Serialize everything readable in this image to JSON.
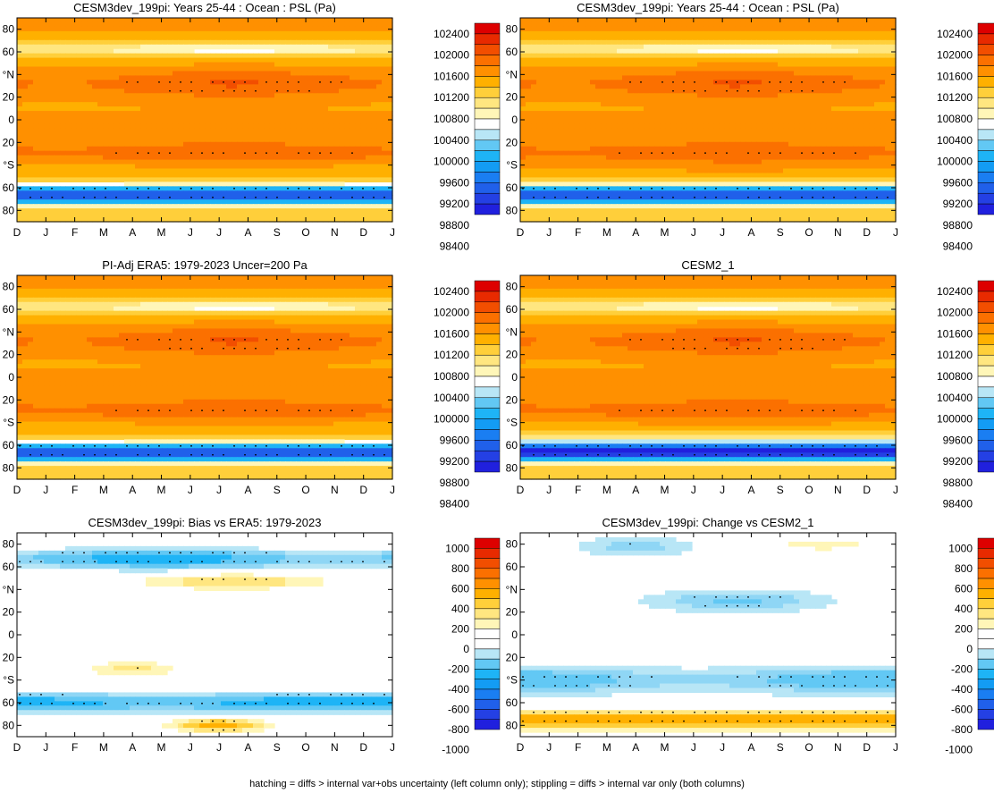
{
  "figure": {
    "footnote": "hatching = diffs > internal var+obs uncertainty (left column only); stippling = diffs > internal var only (both columns)"
  },
  "chart_data": [
    {
      "type": "heatmap",
      "id": "p1",
      "title": "CESM3dev_199pi: Years 25-44 : Ocean : PSL (Pa)",
      "field": "abs",
      "xlabel": "",
      "ylabel": "",
      "xticklabels": [
        "D",
        "J",
        "F",
        "M",
        "A",
        "M",
        "J",
        "J",
        "A",
        "S",
        "O",
        "N",
        "D",
        "J"
      ],
      "yticklabels": [
        "80",
        "60",
        "°N",
        "20",
        "0",
        "20",
        "°S",
        "60",
        "80"
      ],
      "ylim": [
        -90,
        90
      ],
      "colorbar_labels": [
        "102400",
        "102000",
        "101600",
        "101200",
        "100800",
        "100400",
        "100000",
        "99600",
        "99200",
        "98800",
        "98400"
      ],
      "colorbar_colors": [
        "#dd0000",
        "#e82a00",
        "#f24e00",
        "#fb7000",
        "#ff9000",
        "#ffb000",
        "#ffcf3a",
        "#ffe680",
        "#fff6b8",
        "#ffffff",
        "#b8e6f6",
        "#62c8f4",
        "#1eb4f6",
        "#139cf4",
        "#1a7ef2",
        "#2060ea",
        "#2440e4",
        "#2020de"
      ]
    },
    {
      "type": "heatmap",
      "id": "p2",
      "title": "CESM3dev_199pi: Years 25-44 : Ocean : PSL (Pa)",
      "field": "abs",
      "xticklabels": [
        "D",
        "J",
        "F",
        "M",
        "A",
        "M",
        "J",
        "J",
        "A",
        "S",
        "O",
        "N",
        "D",
        "J"
      ],
      "yticklabels": [
        "80",
        "60",
        "°N",
        "20",
        "0",
        "20",
        "°S",
        "60",
        "80"
      ],
      "ylim": [
        -90,
        90
      ],
      "colorbar_labels": [
        "102400",
        "102000",
        "101600",
        "101200",
        "100800",
        "100400",
        "100000",
        "99600",
        "99200",
        "98800",
        "98400"
      ]
    },
    {
      "type": "heatmap",
      "id": "p3",
      "title": "PI-Adj ERA5: 1979-2023 Uncer=200 Pa",
      "field": "abs",
      "xticklabels": [
        "D",
        "J",
        "F",
        "M",
        "A",
        "M",
        "J",
        "J",
        "A",
        "S",
        "O",
        "N",
        "D",
        "J"
      ],
      "yticklabels": [
        "80",
        "60",
        "°N",
        "20",
        "0",
        "20",
        "°S",
        "60",
        "80"
      ],
      "ylim": [
        -90,
        90
      ],
      "colorbar_labels": [
        "102400",
        "102000",
        "101600",
        "101200",
        "100800",
        "100400",
        "100000",
        "99600",
        "99200",
        "98800",
        "98400"
      ]
    },
    {
      "type": "heatmap",
      "id": "p4",
      "title": "CESM2_1",
      "field": "abs",
      "xticklabels": [
        "D",
        "J",
        "F",
        "M",
        "A",
        "M",
        "J",
        "J",
        "A",
        "S",
        "O",
        "N",
        "D",
        "J"
      ],
      "yticklabels": [
        "80",
        "60",
        "°N",
        "20",
        "0",
        "20",
        "°S",
        "60",
        "80"
      ],
      "ylim": [
        -90,
        90
      ],
      "colorbar_labels": [
        "102400",
        "102000",
        "101600",
        "101200",
        "100800",
        "100400",
        "100000",
        "99600",
        "99200",
        "98800",
        "98400"
      ]
    },
    {
      "type": "heatmap",
      "id": "p5",
      "title": "CESM3dev_199pi: Bias vs ERA5: 1979-2023",
      "field": "bias",
      "xticklabels": [
        "D",
        "J",
        "F",
        "M",
        "A",
        "M",
        "J",
        "J",
        "A",
        "S",
        "O",
        "N",
        "D",
        "J"
      ],
      "yticklabels": [
        "80",
        "60",
        "°N",
        "20",
        "0",
        "20",
        "°S",
        "60",
        "80"
      ],
      "ylim": [
        -90,
        90
      ],
      "colorbar_labels": [
        "1000",
        "800",
        "600",
        "400",
        "200",
        "0",
        "-200",
        "-400",
        "-600",
        "-800",
        "-1000"
      ],
      "colorbar_colors": [
        "#dd0000",
        "#e82a00",
        "#f24e00",
        "#fb7000",
        "#ff9000",
        "#ffb000",
        "#ffcf3a",
        "#ffe680",
        "#fff6b8",
        "#ffffff",
        "#ffffff",
        "#b8e6f6",
        "#62c8f4",
        "#1eb4f6",
        "#139cf4",
        "#1a7ef2",
        "#2060ea",
        "#2440e4",
        "#2020de"
      ]
    },
    {
      "type": "heatmap",
      "id": "p6",
      "title": "CESM3dev_199pi: Change vs CESM2_1",
      "field": "change",
      "xticklabels": [
        "D",
        "J",
        "F",
        "M",
        "A",
        "M",
        "J",
        "J",
        "A",
        "S",
        "O",
        "N",
        "D",
        "J"
      ],
      "yticklabels": [
        "80",
        "60",
        "°N",
        "20",
        "0",
        "20",
        "°S",
        "60",
        "80"
      ],
      "ylim": [
        -90,
        90
      ],
      "colorbar_labels": [
        "1000",
        "800",
        "600",
        "400",
        "200",
        "0",
        "-200",
        "-400",
        "-600",
        "-800",
        "-1000"
      ]
    }
  ]
}
